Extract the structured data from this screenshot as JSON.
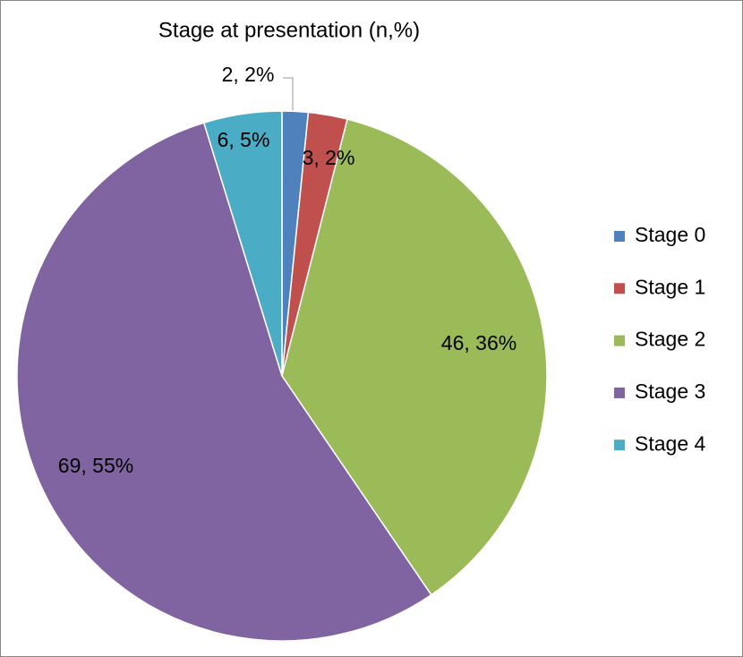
{
  "chart_data": {
    "type": "pie",
    "title": "Stage at presentation (n,%)",
    "categories": [
      "Stage 0",
      "Stage 1",
      "Stage 2",
      "Stage 3",
      "Stage 4"
    ],
    "values": [
      2,
      3,
      46,
      69,
      6
    ],
    "value_labels": [
      "2, 2%",
      "3, 2%",
      "46, 36%",
      "69, 55%",
      "6, 5%"
    ],
    "colors": [
      "#4f81bd",
      "#c0504d",
      "#9bbb59",
      "#8064a2",
      "#4bacc6"
    ],
    "legend": "right"
  }
}
